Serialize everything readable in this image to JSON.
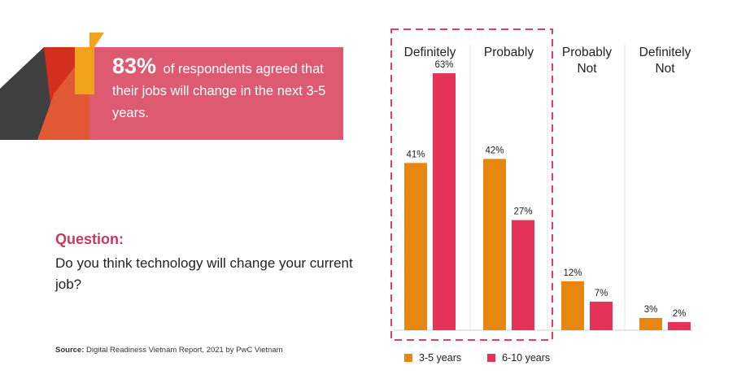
{
  "banner": {
    "highlight": "83%",
    "text": "of respondents agreed that their jobs will change in the next 3-5 years."
  },
  "question": {
    "label": "Question:",
    "text": "Do you think technology will change your current job?"
  },
  "source": {
    "label": "Source:",
    "text": "Digital Readiness Vietnam Report, 2021 by PwC Vietnam"
  },
  "colors": {
    "banner_bg": "#dd5a70",
    "series_3_5": "#e8870f",
    "series_6_10": "#e63358",
    "highlight_box": "#e0405e",
    "accent_dark": "#3f3f3f",
    "accent_red": "#d42e1c",
    "accent_yellow": "#f1a31f"
  },
  "chart_data": {
    "type": "bar",
    "categories": [
      [
        "Definitely"
      ],
      [
        "Probably"
      ],
      [
        "Probably",
        "Not"
      ],
      [
        "Definitely",
        "Not"
      ]
    ],
    "series": [
      {
        "name": "3-5 years",
        "values": [
          41,
          42,
          12,
          3
        ]
      },
      {
        "name": "6-10 years",
        "values": [
          63,
          27,
          7,
          2
        ]
      }
    ],
    "value_suffix": "%",
    "ylim": [
      0,
      67
    ],
    "grid": false,
    "legend": "bottom",
    "highlighted_categories": [
      0,
      1
    ]
  }
}
